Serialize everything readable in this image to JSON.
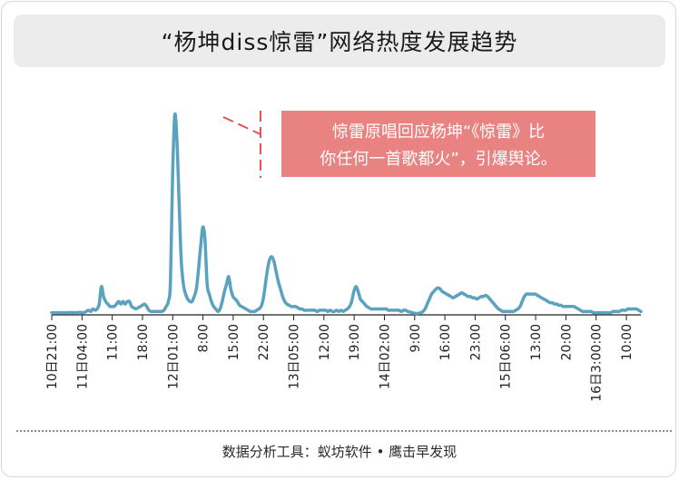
{
  "title": "“杨坤diss惊雷”网络热度发展趋势",
  "annotation": {
    "line1": "惊雷原唱回应杨坤“《惊雷》比",
    "line2": "你任何一首歌都火”，引爆舆论。"
  },
  "source": "数据分析工具：蚁坊软件 • 鹰击早发现",
  "colors": {
    "line": "#5aa2c0",
    "annotation_bg": "#e88382",
    "annotation_border": "#e0545a",
    "axis": "#222222"
  },
  "chart_data": {
    "type": "line",
    "grid": false,
    "legend": "none",
    "title": "“杨坤diss惊雷”网络热度发展趋势",
    "xlabel": "",
    "ylabel": "",
    "x_ticks": [
      "10日21:00",
      "11日04:00",
      "11:00",
      "18:00",
      "12日01:00",
      "8:00",
      "15:00",
      "22:00",
      "13日05:00",
      "12:00",
      "19:00",
      "14日02:00",
      "9:00",
      "16:00",
      "23:00",
      "15日06:00",
      "13:00",
      "20:00",
      "16日3:00:00",
      "10:00"
    ],
    "values": [
      0.5,
      0.5,
      0.5,
      0.5,
      0.5,
      0.5,
      0.5,
      0.5,
      0.5,
      0.6,
      0.5,
      0.6,
      0.5,
      0.7,
      0.5,
      0.6,
      1.0,
      1.5,
      1.0,
      2.0,
      1.5,
      2.0,
      4.0,
      11.0,
      7.0,
      5.0,
      4.0,
      3.0,
      3.0,
      3.0,
      4.0,
      5.0,
      4.0,
      5.0,
      4.0,
      5.0,
      5.0,
      3.0,
      2.5,
      2.0,
      2.5,
      3.0,
      3.5,
      4.0,
      3.0,
      1.5,
      1.0,
      1.0,
      1.0,
      1.0,
      1.0,
      1.0,
      1.5,
      3.0,
      5.0,
      13.0,
      55.0,
      80.0,
      70.0,
      45.0,
      22.0,
      12.0,
      8.0,
      6.0,
      5.0,
      5.0,
      7.0,
      10.0,
      18.0,
      27.0,
      35.0,
      30.0,
      12.0,
      8.0,
      5.0,
      3.0,
      2.0,
      1.0,
      2.0,
      5.0,
      9.0,
      12.0,
      15.0,
      10.0,
      7.0,
      6.0,
      5.0,
      3.5,
      3.0,
      2.5,
      2.0,
      1.5,
      1.0,
      1.0,
      1.0,
      1.5,
      2.0,
      3.0,
      6.0,
      12.0,
      18.0,
      22.0,
      23.0,
      21.0,
      17.0,
      13.0,
      10.0,
      7.0,
      5.0,
      4.0,
      3.5,
      3.0,
      3.0,
      3.0,
      2.5,
      2.0,
      2.0,
      1.5,
      1.5,
      1.5,
      1.5,
      1.5,
      1.5,
      1.0,
      1.5,
      1.5,
      1.5,
      1.5,
      1.0,
      1.5,
      1.0,
      1.0,
      1.5,
      1.0,
      1.5,
      1.0,
      1.5,
      2.0,
      3.0,
      5.0,
      9.0,
      11.0,
      9.0,
      6.0,
      5.0,
      4.0,
      3.0,
      2.5,
      2.0,
      2.0,
      2.0,
      2.0,
      2.0,
      2.0,
      2.0,
      2.0,
      1.5,
      1.5,
      1.5,
      1.5,
      1.5,
      1.5,
      1.0,
      1.5,
      1.5,
      1.0,
      0.8,
      0.5,
      0.3,
      0.2,
      0.3,
      0.5,
      1.0,
      2.0,
      4.0,
      6.0,
      8.0,
      9.0,
      10.0,
      10.5,
      10.0,
      9.0,
      8.5,
      8.0,
      7.5,
      7.0,
      6.5,
      7.0,
      7.5,
      8.0,
      8.5,
      8.0,
      7.5,
      7.0,
      7.0,
      6.5,
      6.5,
      6.0,
      6.5,
      7.0,
      7.0,
      7.5,
      7.0,
      6.0,
      5.0,
      4.0,
      3.0,
      2.0,
      1.5,
      1.0,
      1.0,
      1.0,
      1.0,
      1.0,
      1.0,
      1.5,
      2.0,
      3.0,
      5.0,
      7.0,
      8.0,
      8.0,
      8.0,
      8.0,
      8.0,
      7.5,
      7.0,
      6.5,
      6.0,
      5.5,
      5.0,
      4.5,
      4.5,
      4.0,
      4.0,
      3.5,
      3.5,
      3.0,
      3.0,
      3.0,
      3.0,
      3.0,
      3.0,
      2.5,
      2.0,
      1.5,
      1.0,
      1.0,
      1.0,
      1.0,
      1.0,
      0.5,
      0.5,
      0.5,
      0.5,
      0.5,
      0.5,
      0.5,
      0.5,
      0.5,
      1.0,
      1.0,
      1.0,
      1.0,
      1.5,
      1.5,
      1.5,
      2.0,
      2.0,
      2.0,
      2.0,
      2.0,
      1.5,
      1.0
    ]
  }
}
